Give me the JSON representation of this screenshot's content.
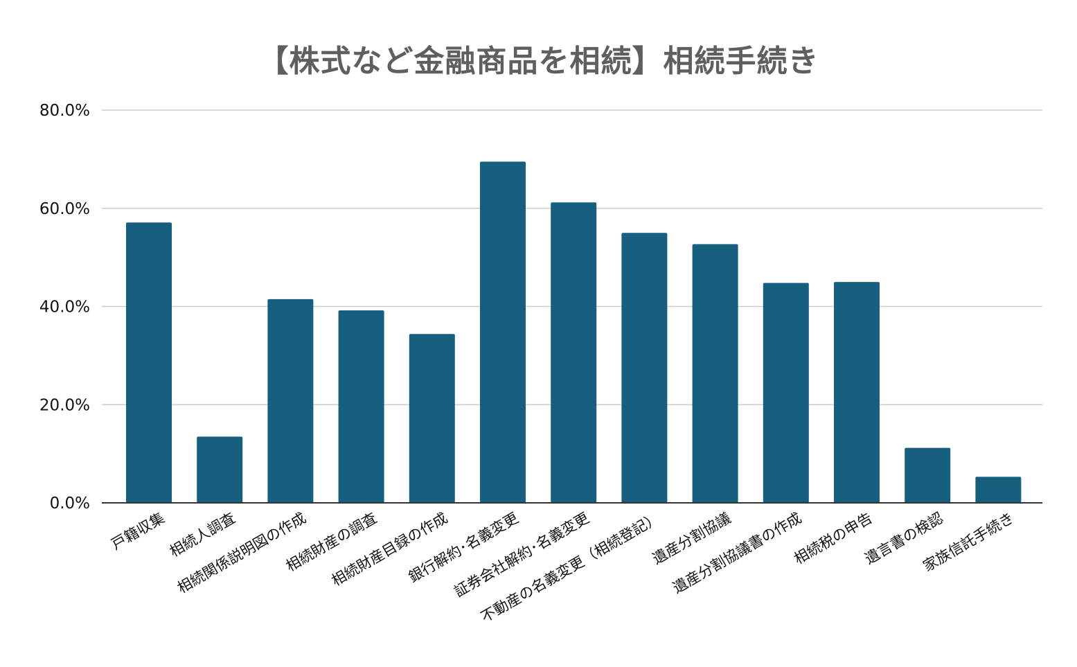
{
  "chart_data": {
    "type": "bar",
    "title": "【株式など金融商品を相続】相続手続き",
    "xlabel": "",
    "ylabel": "",
    "ylim": [
      0,
      80
    ],
    "yticks": [
      0,
      20,
      40,
      60,
      80
    ],
    "ytick_labels": [
      "0.0%",
      "20.0%",
      "40.0%",
      "60.0%",
      "80.0%"
    ],
    "grid": true,
    "legend": "none",
    "categories": [
      "戸籍収集",
      "相続人調査",
      "相続関係説明図の作成",
      "相続財産の調査",
      "相続財産目録の作成",
      "銀行解約･名義変更",
      "証券会社解約･名義変更",
      "不動産の名義変更（相続登記）",
      "遺産分割協議",
      "遺産分割協議書の作成",
      "相続税の申告",
      "遺言書の検認",
      "家族信託手続き"
    ],
    "values": [
      57.1,
      13.5,
      41.5,
      39.2,
      34.4,
      69.5,
      61.2,
      55.0,
      52.7,
      44.8,
      45.0,
      11.2,
      5.3
    ],
    "colors": {
      "bar": "#175f7f",
      "grid": "#cccccc",
      "axis": "#333333",
      "title": "#5f5f5f"
    }
  }
}
